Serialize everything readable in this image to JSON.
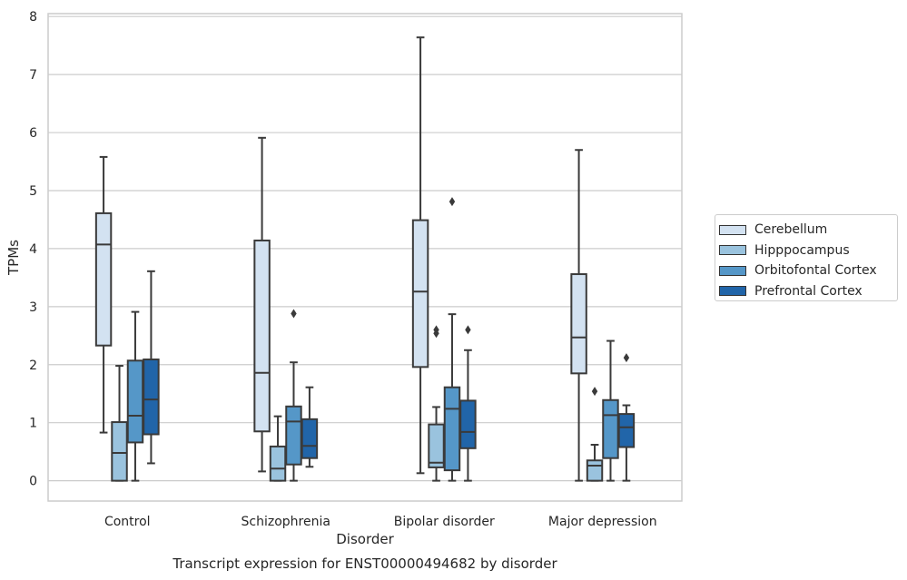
{
  "chart_data": {
    "type": "box",
    "title": "Transcript expression for ENST00000494682 by disorder",
    "xlabel": "Disorder",
    "ylabel": "TPMs",
    "ylim": [
      -0.35,
      8.05
    ],
    "yticks": [
      "0",
      "1",
      "2",
      "3",
      "4",
      "5",
      "6",
      "7",
      "8"
    ],
    "grid": "horizontal",
    "legend_placement": "right",
    "categories": [
      "Control",
      "Schizophrenia",
      "Bipolar disorder",
      "Major depression"
    ],
    "series": [
      {
        "name": "Cerebellum",
        "color": "#d3e2f1",
        "boxes": [
          {
            "whislo": 0.83,
            "q1": 2.33,
            "med": 4.07,
            "q3": 4.61,
            "whishi": 5.58,
            "fliers": []
          },
          {
            "whislo": 0.16,
            "q1": 0.85,
            "med": 1.86,
            "q3": 4.14,
            "whishi": 5.91,
            "fliers": []
          },
          {
            "whislo": 0.13,
            "q1": 1.96,
            "med": 3.26,
            "q3": 4.49,
            "whishi": 7.64,
            "fliers": []
          },
          {
            "whislo": 0.0,
            "q1": 1.85,
            "med": 2.47,
            "q3": 3.56,
            "whishi": 5.7,
            "fliers": []
          }
        ]
      },
      {
        "name": "Hipppocampus",
        "color": "#9ac3de",
        "boxes": [
          {
            "whislo": 0.0,
            "q1": 0.0,
            "med": 0.48,
            "q3": 1.01,
            "whishi": 1.98,
            "fliers": []
          },
          {
            "whislo": 0.0,
            "q1": 0.0,
            "med": 0.21,
            "q3": 0.59,
            "whishi": 1.11,
            "fliers": []
          },
          {
            "whislo": 0.0,
            "q1": 0.23,
            "med": 0.31,
            "q3": 0.97,
            "whishi": 1.27,
            "fliers": [
              2.54,
              2.6
            ]
          },
          {
            "whislo": 0.0,
            "q1": 0.0,
            "med": 0.26,
            "q3": 0.35,
            "whishi": 0.62,
            "fliers": [
              1.54
            ]
          }
        ]
      },
      {
        "name": "Orbitofontal Cortex",
        "color": "#5597c8",
        "boxes": [
          {
            "whislo": 0.0,
            "q1": 0.66,
            "med": 1.12,
            "q3": 2.07,
            "whishi": 2.91,
            "fliers": []
          },
          {
            "whislo": 0.0,
            "q1": 0.28,
            "med": 1.02,
            "q3": 1.28,
            "whishi": 2.04,
            "fliers": [
              2.88
            ]
          },
          {
            "whislo": 0.0,
            "q1": 0.18,
            "med": 1.24,
            "q3": 1.61,
            "whishi": 2.87,
            "fliers": [
              4.81
            ]
          },
          {
            "whislo": 0.0,
            "q1": 0.39,
            "med": 1.13,
            "q3": 1.39,
            "whishi": 2.41,
            "fliers": []
          }
        ]
      },
      {
        "name": "Prefrontal Cortex",
        "color": "#2165a9",
        "boxes": [
          {
            "whislo": 0.3,
            "q1": 0.8,
            "med": 1.4,
            "q3": 2.09,
            "whishi": 3.61,
            "fliers": []
          },
          {
            "whislo": 0.24,
            "q1": 0.39,
            "med": 0.6,
            "q3": 1.06,
            "whishi": 1.61,
            "fliers": []
          },
          {
            "whislo": 0.0,
            "q1": 0.56,
            "med": 0.84,
            "q3": 1.38,
            "whishi": 2.25,
            "fliers": [
              2.6
            ]
          },
          {
            "whislo": 0.0,
            "q1": 0.58,
            "med": 0.92,
            "q3": 1.15,
            "whishi": 1.3,
            "fliers": [
              2.12
            ]
          }
        ]
      }
    ]
  }
}
